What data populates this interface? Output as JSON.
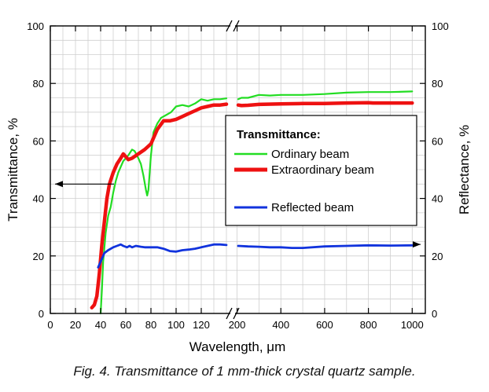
{
  "caption": "Fig.  4. Transmittance  of 1 mm-thick crystal quartz sample.",
  "chart_data": {
    "type": "line",
    "ylabel": "Transmittance, %",
    "ylabel_right": "Reflectance, %",
    "xlabel": "Wavelength, μm",
    "ylim": [
      0,
      100
    ],
    "yticks": [
      0,
      20,
      40,
      60,
      80,
      100
    ],
    "ytick_labels": [
      "0",
      "20",
      "40",
      "60",
      "80",
      "100"
    ],
    "x_segments": [
      {
        "range": [
          0,
          145
        ],
        "ticks": [
          0,
          20,
          40,
          60,
          80,
          100,
          120
        ],
        "tick_labels": [
          "0",
          "20",
          "40",
          "60",
          "80",
          "100",
          "120"
        ]
      },
      {
        "range": [
          180,
          1060
        ],
        "ticks": [
          200,
          400,
          600,
          800,
          1000
        ],
        "tick_labels": [
          "200",
          "400",
          "600",
          "800",
          "1000"
        ]
      }
    ],
    "grid": true,
    "legend": {
      "title": "Transmittance:",
      "position": "center-right",
      "entries": [
        "Ordinary beam",
        "Extraordinary beam",
        "Reflected beam"
      ]
    },
    "series": [
      {
        "name": "Ordinary beam",
        "color": "#22dd22",
        "points": [
          [
            40,
            0
          ],
          [
            41,
            8
          ],
          [
            42,
            18
          ],
          [
            44,
            28
          ],
          [
            46,
            34
          ],
          [
            48,
            37
          ],
          [
            50,
            42
          ],
          [
            52,
            46
          ],
          [
            54,
            49
          ],
          [
            56,
            51
          ],
          [
            58,
            53
          ],
          [
            60,
            54
          ],
          [
            62,
            55
          ],
          [
            65,
            57
          ],
          [
            67,
            56.5
          ],
          [
            70,
            54
          ],
          [
            72,
            52
          ],
          [
            74,
            48
          ],
          [
            76,
            43
          ],
          [
            77,
            41
          ],
          [
            78,
            43
          ],
          [
            80,
            55
          ],
          [
            82,
            63
          ],
          [
            85,
            66
          ],
          [
            88,
            68
          ],
          [
            92,
            69
          ],
          [
            96,
            70
          ],
          [
            100,
            72
          ],
          [
            105,
            72.5
          ],
          [
            110,
            72
          ],
          [
            115,
            73
          ],
          [
            120,
            74.5
          ],
          [
            125,
            74
          ],
          [
            130,
            74.5
          ],
          [
            135,
            74.5
          ],
          [
            140,
            74.8
          ],
          [
            205,
            74.5
          ],
          [
            220,
            75
          ],
          [
            250,
            75
          ],
          [
            300,
            76
          ],
          [
            350,
            75.8
          ],
          [
            400,
            76
          ],
          [
            500,
            76
          ],
          [
            600,
            76.3
          ],
          [
            700,
            76.8
          ],
          [
            800,
            77
          ],
          [
            900,
            77
          ],
          [
            1000,
            77.2
          ]
        ]
      },
      {
        "name": "Extraordinary beam",
        "color": "#ee1111",
        "points": [
          [
            33,
            2
          ],
          [
            35,
            3
          ],
          [
            37,
            6
          ],
          [
            39,
            14
          ],
          [
            41,
            24
          ],
          [
            43,
            32
          ],
          [
            45,
            40
          ],
          [
            47,
            45
          ],
          [
            50,
            49
          ],
          [
            53,
            52
          ],
          [
            56,
            54
          ],
          [
            58,
            55.5
          ],
          [
            60,
            54.5
          ],
          [
            62,
            53.5
          ],
          [
            65,
            54
          ],
          [
            70,
            55.5
          ],
          [
            75,
            57
          ],
          [
            80,
            59
          ],
          [
            85,
            64
          ],
          [
            90,
            67
          ],
          [
            95,
            67
          ],
          [
            100,
            67.5
          ],
          [
            105,
            68.5
          ],
          [
            110,
            69.5
          ],
          [
            115,
            70.5
          ],
          [
            120,
            71.5
          ],
          [
            125,
            72
          ],
          [
            130,
            72.5
          ],
          [
            135,
            72.5
          ],
          [
            140,
            72.8
          ],
          [
            205,
            72.5
          ],
          [
            220,
            72.3
          ],
          [
            250,
            72.4
          ],
          [
            300,
            72.7
          ],
          [
            400,
            72.9
          ],
          [
            500,
            73
          ],
          [
            600,
            73
          ],
          [
            700,
            73.2
          ],
          [
            800,
            73.3
          ],
          [
            820,
            73.2
          ],
          [
            900,
            73.2
          ],
          [
            1000,
            73.2
          ]
        ]
      },
      {
        "name": "Reflected beam",
        "color": "#1133dd",
        "points": [
          [
            38,
            16
          ],
          [
            40,
            18
          ],
          [
            43,
            21
          ],
          [
            46,
            22
          ],
          [
            50,
            23
          ],
          [
            53,
            23.5
          ],
          [
            56,
            24
          ],
          [
            58,
            23.5
          ],
          [
            61,
            23
          ],
          [
            63,
            23.5
          ],
          [
            65,
            23
          ],
          [
            68,
            23.5
          ],
          [
            72,
            23.2
          ],
          [
            75,
            23
          ],
          [
            80,
            23
          ],
          [
            85,
            23
          ],
          [
            90,
            22.5
          ],
          [
            95,
            21.7
          ],
          [
            100,
            21.5
          ],
          [
            105,
            22
          ],
          [
            110,
            22.2
          ],
          [
            115,
            22.5
          ],
          [
            120,
            23
          ],
          [
            125,
            23.5
          ],
          [
            130,
            24
          ],
          [
            135,
            24
          ],
          [
            140,
            23.8
          ],
          [
            205,
            23.5
          ],
          [
            250,
            23.3
          ],
          [
            300,
            23.2
          ],
          [
            350,
            23
          ],
          [
            400,
            23
          ],
          [
            450,
            22.8
          ],
          [
            500,
            22.8
          ],
          [
            600,
            23.3
          ],
          [
            700,
            23.5
          ],
          [
            800,
            23.7
          ],
          [
            900,
            23.6
          ],
          [
            1000,
            23.7
          ]
        ]
      }
    ],
    "annotations": [
      {
        "type": "arrow",
        "direction": "left",
        "axis": "left",
        "y": 45
      },
      {
        "type": "arrow",
        "direction": "right",
        "axis": "right",
        "y": 24
      },
      {
        "type": "axis-break",
        "at": "x",
        "between": [
          145,
          180
        ]
      }
    ]
  }
}
